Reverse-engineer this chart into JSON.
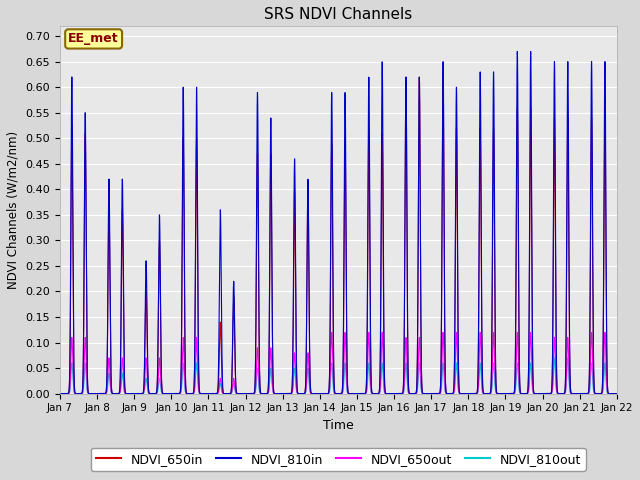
{
  "title": "SRS NDVI Channels",
  "ylabel": "NDVI Channels (W/m2/nm)",
  "xlabel": "Time",
  "annotation": "EE_met",
  "ylim": [
    0.0,
    0.72
  ],
  "xlim_days": [
    0,
    15
  ],
  "series": {
    "NDVI_650in": {
      "color": "#cc0000",
      "lw": 0.8
    },
    "NDVI_810in": {
      "color": "#0000cc",
      "lw": 0.8
    },
    "NDVI_650out": {
      "color": "#ff00ff",
      "lw": 0.8
    },
    "NDVI_810out": {
      "color": "#00cccc",
      "lw": 0.8
    }
  },
  "day_peaks_810in": [
    0.62,
    0.42,
    0.26,
    0.6,
    0.36,
    0.59,
    0.46,
    0.59,
    0.62,
    0.62,
    0.65,
    0.63,
    0.67,
    0.65,
    0.65
  ],
  "day_peaks_650in": [
    0.51,
    0.36,
    0.2,
    0.5,
    0.14,
    0.47,
    0.4,
    0.49,
    0.51,
    0.62,
    0.62,
    0.52,
    0.56,
    0.54,
    0.54
  ],
  "day_peaks_650out": [
    0.11,
    0.07,
    0.07,
    0.11,
    0.03,
    0.09,
    0.08,
    0.12,
    0.12,
    0.11,
    0.12,
    0.12,
    0.12,
    0.11,
    0.12
  ],
  "day_peaks_810out": [
    0.06,
    0.04,
    0.03,
    0.06,
    0.02,
    0.05,
    0.05,
    0.06,
    0.06,
    0.06,
    0.06,
    0.06,
    0.06,
    0.07,
    0.06
  ],
  "day_peaks2_810in": [
    0.55,
    0.42,
    0.35,
    0.6,
    0.22,
    0.54,
    0.42,
    0.59,
    0.65,
    0.62,
    0.6,
    0.63,
    0.67,
    0.65,
    0.65
  ],
  "day_peaks2_650in": [
    0.51,
    0.36,
    0.3,
    0.5,
    0.19,
    0.47,
    0.4,
    0.49,
    0.51,
    0.62,
    0.52,
    0.52,
    0.56,
    0.54,
    0.54
  ],
  "day_peaks2_650out": [
    0.11,
    0.07,
    0.07,
    0.11,
    0.03,
    0.09,
    0.08,
    0.12,
    0.12,
    0.11,
    0.12,
    0.12,
    0.12,
    0.11,
    0.12
  ],
  "day_peaks2_810out": [
    0.06,
    0.04,
    0.03,
    0.06,
    0.02,
    0.05,
    0.05,
    0.06,
    0.06,
    0.06,
    0.06,
    0.06,
    0.06,
    0.07,
    0.06
  ],
  "xtick_labels": [
    "Jan 7",
    "Jan 8",
    "Jan 9",
    "Jan 10",
    "Jan 11",
    "Jan 12",
    "Jan 13",
    "Jan 14",
    "Jan 15",
    "Jan 16",
    "Jan 17",
    "Jan 18",
    "Jan 19",
    "Jan 20",
    "Jan 21",
    "Jan 22"
  ],
  "ytick_vals": [
    0.0,
    0.05,
    0.1,
    0.15,
    0.2,
    0.25,
    0.3,
    0.35,
    0.4,
    0.45,
    0.5,
    0.55,
    0.6,
    0.65,
    0.7
  ],
  "legend_entries": [
    "NDVI_650in",
    "NDVI_810in",
    "NDVI_650out",
    "NDVI_810out"
  ],
  "legend_colors": [
    "#cc0000",
    "#0000cc",
    "#ff00ff",
    "#00cccc"
  ],
  "bg_color": "#d8d8d8",
  "plot_bg_color": "#e8e8e8",
  "annotation_bg": "#ffff99",
  "annotation_border": "#886600"
}
